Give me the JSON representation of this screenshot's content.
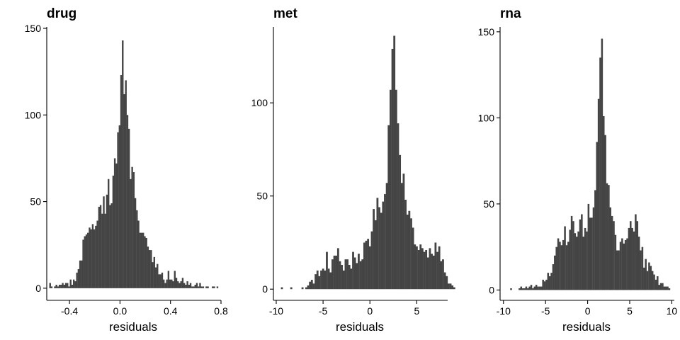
{
  "chart_data": [
    {
      "type": "bar",
      "title": "drug",
      "xlabel": "residuals",
      "ylabel": "",
      "xlim": [
        -0.58,
        0.8
      ],
      "ylim": [
        -7,
        150
      ],
      "x_ticks": [
        -0.4,
        0.0,
        0.4,
        0.8
      ],
      "x_tick_labels": [
        "-0.4",
        "0.0",
        "0.4",
        "0.8"
      ],
      "y_ticks": [
        0,
        50,
        100,
        150
      ],
      "y_tick_labels": [
        "0",
        "50",
        "100",
        "150"
      ],
      "bin_start": -0.56,
      "bin_width": 0.0125,
      "values": [
        3,
        1,
        0,
        1,
        2,
        1,
        2,
        2,
        3,
        2,
        3,
        3,
        1,
        5,
        2,
        5,
        4,
        9,
        11,
        16,
        16,
        28,
        30,
        31,
        32,
        35,
        34,
        37,
        34,
        36,
        39,
        47,
        48,
        43,
        53,
        43,
        54,
        63,
        48,
        49,
        65,
        75,
        72,
        90,
        94,
        123,
        143,
        112,
        120,
        100,
        92,
        63,
        70,
        67,
        52,
        45,
        39,
        32,
        32,
        32,
        30,
        29,
        24,
        22,
        22,
        15,
        18,
        12,
        14,
        8,
        8,
        9,
        5,
        3,
        5,
        10,
        5,
        5,
        4,
        10,
        6,
        4,
        3,
        4,
        6,
        3,
        2,
        4,
        2,
        3,
        1,
        1,
        2,
        3,
        1,
        3,
        1,
        1,
        0,
        1,
        1,
        0,
        0,
        1,
        1,
        0,
        1
      ],
      "grid": false,
      "legend": "none"
    },
    {
      "type": "bar",
      "title": "met",
      "xlabel": "residuals",
      "ylabel": "",
      "xlim": [
        -10.3,
        8.3
      ],
      "ylim": [
        -6,
        140
      ],
      "x_ticks": [
        -10,
        -5,
        0,
        5
      ],
      "x_tick_labels": [
        "-10",
        "-5",
        "0",
        "5"
      ],
      "y_ticks": [
        0,
        50,
        100
      ],
      "y_tick_labels": [
        "0",
        "50",
        "100"
      ],
      "bin_start": -9.5,
      "bin_width": 0.2,
      "values": [
        1,
        0,
        0,
        0,
        0,
        1,
        0,
        0,
        0,
        0,
        0,
        1,
        0,
        1,
        2,
        4,
        5,
        3,
        8,
        10,
        7,
        10,
        11,
        10,
        20,
        11,
        9,
        16,
        18,
        18,
        22,
        15,
        13,
        10,
        16,
        16,
        13,
        11,
        20,
        17,
        14,
        19,
        15,
        16,
        25,
        26,
        27,
        23,
        31,
        43,
        37,
        49,
        44,
        41,
        47,
        51,
        57,
        88,
        107,
        129,
        136,
        107,
        89,
        72,
        57,
        62,
        48,
        40,
        42,
        38,
        33,
        24,
        23,
        21,
        24,
        22,
        20,
        21,
        17,
        22,
        19,
        18,
        25,
        20,
        23,
        15,
        16,
        9,
        7,
        3,
        3,
        2,
        1
      ],
      "grid": false,
      "legend": "none"
    },
    {
      "type": "bar",
      "title": "rna",
      "xlabel": "residuals",
      "ylabel": "",
      "xlim": [
        -10.4,
        10.3
      ],
      "ylim": [
        -6,
        152
      ],
      "x_ticks": [
        -10,
        -5,
        0,
        5,
        10
      ],
      "x_tick_labels": [
        "-10",
        "-5",
        "0",
        "5",
        "10"
      ],
      "y_ticks": [
        0,
        50,
        100,
        150
      ],
      "y_tick_labels": [
        "0",
        "50",
        "100",
        "150"
      ],
      "bin_start": -9.2,
      "bin_width": 0.2,
      "values": [
        1,
        0,
        0,
        0,
        0,
        1,
        2,
        1,
        1,
        2,
        1,
        2,
        3,
        1,
        2,
        3,
        2,
        2,
        2,
        6,
        5,
        6,
        10,
        8,
        10,
        15,
        20,
        25,
        30,
        28,
        26,
        29,
        37,
        26,
        28,
        35,
        43,
        40,
        33,
        31,
        34,
        41,
        44,
        31,
        36,
        34,
        50,
        42,
        42,
        48,
        58,
        86,
        111,
        135,
        146,
        101,
        90,
        62,
        61,
        48,
        43,
        40,
        32,
        23,
        23,
        28,
        30,
        27,
        29,
        30,
        36,
        40,
        36,
        34,
        44,
        40,
        31,
        23,
        25,
        13,
        18,
        11,
        16,
        14,
        11,
        9,
        6,
        8,
        3,
        4,
        4,
        2,
        2,
        2,
        1
      ],
      "grid": false,
      "legend": "none"
    }
  ]
}
